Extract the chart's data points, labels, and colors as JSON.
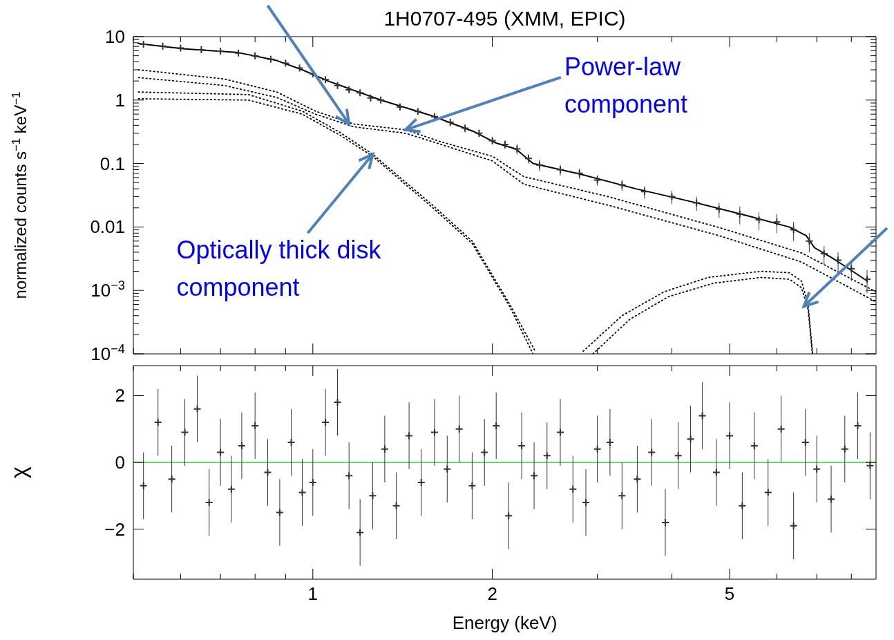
{
  "chart_data": [
    {
      "type": "line",
      "title": "1H0707-495 (XMM, EPIC)",
      "ylabel": "normalized counts s$^{−1}$ keV$^{−1}$",
      "log": "xy",
      "tick_labels": "y",
      "xlim": [
        0.5,
        8.8
      ],
      "ylim": [
        0.0001,
        10
      ],
      "xticks": [
        {
          "value": 0.5,
          "label": null
        },
        {
          "value": 0.6,
          "label": null
        },
        {
          "value": 0.7,
          "label": null
        },
        {
          "value": 0.8,
          "label": null
        },
        {
          "value": 0.9,
          "label": null
        },
        1,
        2,
        {
          "value": 3,
          "label": null
        },
        {
          "value": 4,
          "label": null
        },
        5,
        {
          "value": 6,
          "label": null
        },
        {
          "value": 7,
          "label": null
        },
        {
          "value": 8,
          "label": null
        }
      ],
      "yticks": [
        {
          "value": 0.0001,
          "label": "10$^{−4}$"
        },
        {
          "value": 0.0002,
          "label": null
        },
        {
          "value": 0.0003,
          "label": null
        },
        {
          "value": 0.0004,
          "label": null
        },
        {
          "value": 0.0005,
          "label": null
        },
        {
          "value": 0.0006,
          "label": null
        },
        {
          "value": 0.0007,
          "label": null
        },
        {
          "value": 0.0008,
          "label": null
        },
        {
          "value": 0.0009,
          "label": null
        },
        {
          "value": 0.001,
          "label": "10$^{−3}$"
        },
        {
          "value": 0.002,
          "label": null
        },
        {
          "value": 0.003,
          "label": null
        },
        {
          "value": 0.004,
          "label": null
        },
        {
          "value": 0.005,
          "label": null
        },
        {
          "value": 0.006,
          "label": null
        },
        {
          "value": 0.007,
          "label": null
        },
        {
          "value": 0.008,
          "label": null
        },
        {
          "value": 0.009,
          "label": null
        },
        0.01,
        {
          "value": 0.02,
          "label": null
        },
        {
          "value": 0.03,
          "label": null
        },
        {
          "value": 0.04,
          "label": null
        },
        {
          "value": 0.05,
          "label": null
        },
        {
          "value": 0.06,
          "label": null
        },
        {
          "value": 0.07,
          "label": null
        },
        {
          "value": 0.08,
          "label": null
        },
        {
          "value": 0.09,
          "label": null
        },
        0.1,
        {
          "value": 0.2,
          "label": null
        },
        {
          "value": 0.3,
          "label": null
        },
        {
          "value": 0.4,
          "label": null
        },
        {
          "value": 0.5,
          "label": null
        },
        {
          "value": 0.6,
          "label": null
        },
        {
          "value": 0.7,
          "label": null
        },
        {
          "value": 0.8,
          "label": null
        },
        {
          "value": 0.9,
          "label": null
        },
        1,
        {
          "value": 2,
          "label": null
        },
        {
          "value": 3,
          "label": null
        },
        {
          "value": 4,
          "label": null
        },
        {
          "value": 5,
          "label": null
        },
        {
          "value": 6,
          "label": null
        },
        {
          "value": 7,
          "label": null
        },
        {
          "value": 8,
          "label": null
        },
        {
          "value": 9,
          "label": null
        },
        10
      ],
      "annotations": [
        {
          "text": "Power-law component",
          "x": 1.43,
          "y": 0.34
        },
        {
          "text": "Optically thick disk component",
          "x": 1.26,
          "y": 0.14
        }
      ],
      "series": [
        {
          "line_style": "dotted",
          "color": "#000000",
          "x": [
            0.51,
            0.71,
            0.87,
            1.01,
            1.17,
            1.43,
            1.64,
            2.0,
            2.26,
            3.13,
            4.8,
            6.6,
            8.8
          ],
          "values": [
            3.0,
            2.15,
            1.34,
            0.67,
            0.42,
            0.34,
            0.22,
            0.13,
            0.062,
            0.03,
            0.0098,
            0.0039,
            0.00095
          ]
        },
        {
          "line_style": "dotted",
          "color": "#000000",
          "x": [
            0.51,
            0.71,
            0.87,
            1.01,
            1.17,
            1.43,
            1.64,
            2.0,
            2.26,
            3.13,
            4.8,
            6.6,
            8.8
          ],
          "values": [
            2.26,
            1.7,
            1.1,
            0.6,
            0.38,
            0.3,
            0.2,
            0.11,
            0.047,
            0.022,
            0.0073,
            0.0028,
            0.00066
          ]
        },
        {
          "line_style": "dotted",
          "color": "#000000",
          "x": [
            0.51,
            0.78,
            0.96,
            1.11,
            1.26,
            1.58,
            1.85,
            2.14,
            2.36
          ],
          "values": [
            1.34,
            1.22,
            0.67,
            0.31,
            0.14,
            0.023,
            0.006,
            0.0006,
            0.00011
          ]
        },
        {
          "line_style": "dotted",
          "color": "#000000",
          "x": [
            0.51,
            0.78,
            0.96,
            1.11,
            1.26,
            1.58,
            1.85,
            2.14,
            2.34
          ],
          "values": [
            1.05,
            1.0,
            0.6,
            0.28,
            0.13,
            0.021,
            0.0055,
            0.00055,
            0.0001
          ]
        },
        {
          "line_style": "dotted",
          "color": "#000000",
          "x": [
            2.84,
            3.3,
            3.88,
            4.6,
            5.64,
            6.3,
            6.6,
            6.77,
            6.89
          ],
          "values": [
            0.00011,
            0.0004,
            0.00095,
            0.0016,
            0.002,
            0.0019,
            0.0014,
            0.0006,
            0.0001
          ]
        },
        {
          "line_style": "dotted",
          "color": "#000000",
          "x": [
            2.95,
            3.4,
            3.95,
            4.7,
            5.64,
            6.3,
            6.6,
            6.77,
            6.88
          ],
          "values": [
            0.0001,
            0.00035,
            0.0008,
            0.0013,
            0.0016,
            0.0015,
            0.0011,
            0.0005,
            0.0001
          ]
        },
        {
          "type": "scatter",
          "marker": "cross",
          "color": "#333333",
          "x": [
            0.52,
            0.56,
            0.6,
            0.65,
            0.7,
            0.75,
            0.8,
            0.85,
            0.9,
            0.95,
            1.0,
            1.05,
            1.1,
            1.15,
            1.2,
            1.25,
            1.3,
            1.4,
            1.5,
            1.6,
            1.7,
            1.8,
            1.9,
            2.0,
            2.1,
            2.2,
            2.3,
            2.4,
            2.6,
            2.8,
            3.0,
            3.3,
            3.6,
            4.0,
            4.4,
            4.8,
            5.2,
            5.6,
            6.0,
            6.4,
            6.8,
            7.2,
            7.6,
            8.0,
            8.5
          ],
          "values": [
            7.6,
            7.1,
            6.6,
            6.2,
            5.9,
            5.5,
            5.0,
            4.4,
            3.8,
            3.2,
            2.6,
            2.1,
            1.7,
            1.45,
            1.3,
            1.08,
            1.0,
            0.78,
            0.66,
            0.55,
            0.45,
            0.36,
            0.3,
            0.23,
            0.2,
            0.17,
            0.12,
            0.095,
            0.08,
            0.07,
            0.055,
            0.046,
            0.036,
            0.03,
            0.024,
            0.019,
            0.016,
            0.013,
            0.012,
            0.009,
            0.006,
            0.0038,
            0.003,
            0.0022,
            0.0015
          ],
          "errors": [
            0.3,
            0.3,
            0.3,
            0.3,
            0.3,
            0.3,
            0.3,
            0.3,
            0.2,
            0.2,
            0.2,
            0.15,
            0.15,
            0.1,
            0.1,
            0.1,
            0.1,
            0.08,
            0.07,
            0.06,
            0.05,
            0.05,
            0.04,
            0.03,
            0.03,
            0.03,
            0.02,
            0.02,
            0.015,
            0.013,
            0.01,
            0.009,
            0.008,
            0.007,
            0.006,
            0.005,
            0.005,
            0.004,
            0.004,
            0.003,
            0.002,
            0.0012,
            0.001,
            0.0008,
            0.0006
          ]
        },
        {
          "line_style": "solid",
          "color": "#000000",
          "x": [
            0.51,
            0.61,
            0.75,
            0.87,
            0.96,
            1.06,
            1.3,
            1.58,
            1.86,
            2.03,
            2.19,
            2.34,
            2.81,
            3.48,
            4.32,
            5.36,
            6.29,
            6.72,
            6.94,
            7.41,
            7.92,
            8.51
          ],
          "values": [
            7.8,
            6.4,
            5.6,
            4.2,
            3.0,
            2.0,
            1.0,
            0.57,
            0.32,
            0.21,
            0.17,
            0.1,
            0.068,
            0.04,
            0.025,
            0.015,
            0.01,
            0.0073,
            0.0047,
            0.0033,
            0.0022,
            0.0014
          ]
        }
      ]
    },
    {
      "type": "scatter",
      "xlabel": "Energy (keV)",
      "ylabel": "χ",
      "log": "x",
      "marker": "cross",
      "color": "#333333",
      "xlim": [
        0.5,
        8.8
      ],
      "ylim": [
        -3.5,
        2.9
      ],
      "xticks": [
        {
          "value": 0.5,
          "label": null
        },
        {
          "value": 0.6,
          "label": null
        },
        {
          "value": 0.7,
          "label": null
        },
        {
          "value": 0.8,
          "label": null
        },
        {
          "value": 0.9,
          "label": null
        },
        1,
        2,
        {
          "value": 3,
          "label": null
        },
        {
          "value": 4,
          "label": null
        },
        5,
        {
          "value": 6,
          "label": null
        },
        {
          "value": 7,
          "label": null
        },
        {
          "value": 8,
          "label": null
        }
      ],
      "yticks": [
        {
          "value": -2,
          "label": "−2"
        },
        0,
        2
      ],
      "ref_lines": [
        {
          "axis": "y",
          "value": 0,
          "color": "#33cc33"
        }
      ],
      "x": [
        0.52,
        0.55,
        0.58,
        0.61,
        0.64,
        0.67,
        0.7,
        0.73,
        0.76,
        0.8,
        0.84,
        0.88,
        0.92,
        0.96,
        1.0,
        1.05,
        1.1,
        1.15,
        1.2,
        1.26,
        1.32,
        1.38,
        1.45,
        1.52,
        1.6,
        1.68,
        1.76,
        1.85,
        1.94,
        2.03,
        2.13,
        2.24,
        2.35,
        2.47,
        2.6,
        2.73,
        2.87,
        3.0,
        3.15,
        3.3,
        3.5,
        3.7,
        3.9,
        4.1,
        4.3,
        4.5,
        4.75,
        5.0,
        5.25,
        5.5,
        5.8,
        6.1,
        6.4,
        6.7,
        7.0,
        7.4,
        7.8,
        8.2,
        8.6
      ],
      "values": [
        -0.7,
        1.2,
        -0.5,
        0.9,
        1.6,
        -1.2,
        0.3,
        -0.8,
        0.5,
        1.1,
        -0.3,
        -1.5,
        0.6,
        -0.9,
        -0.6,
        1.2,
        1.8,
        -0.4,
        -2.1,
        -1.0,
        0.4,
        -1.3,
        0.8,
        -0.6,
        0.9,
        -0.2,
        1.0,
        -0.7,
        0.3,
        1.1,
        -1.6,
        0.5,
        -0.4,
        0.2,
        0.9,
        -0.8,
        -1.2,
        0.4,
        0.6,
        -1.0,
        -0.5,
        0.3,
        -1.8,
        0.2,
        0.7,
        1.4,
        -0.3,
        0.8,
        -1.3,
        0.5,
        -0.9,
        1.0,
        -1.9,
        0.6,
        -0.2,
        -1.1,
        0.4,
        1.1,
        -0.1
      ],
      "errors": [
        1,
        1,
        1,
        1,
        1,
        1,
        1,
        1,
        1,
        1,
        1,
        1,
        1,
        1,
        1,
        1,
        1,
        1,
        1,
        1,
        1,
        1,
        1,
        1,
        1,
        1,
        1,
        1,
        1,
        1,
        1,
        1,
        1,
        1,
        1,
        1,
        1,
        1,
        1,
        1,
        1,
        1,
        1,
        1,
        1,
        1,
        1,
        1,
        1,
        1,
        1,
        1,
        1,
        1,
        1,
        1,
        1,
        1,
        1
      ]
    }
  ]
}
